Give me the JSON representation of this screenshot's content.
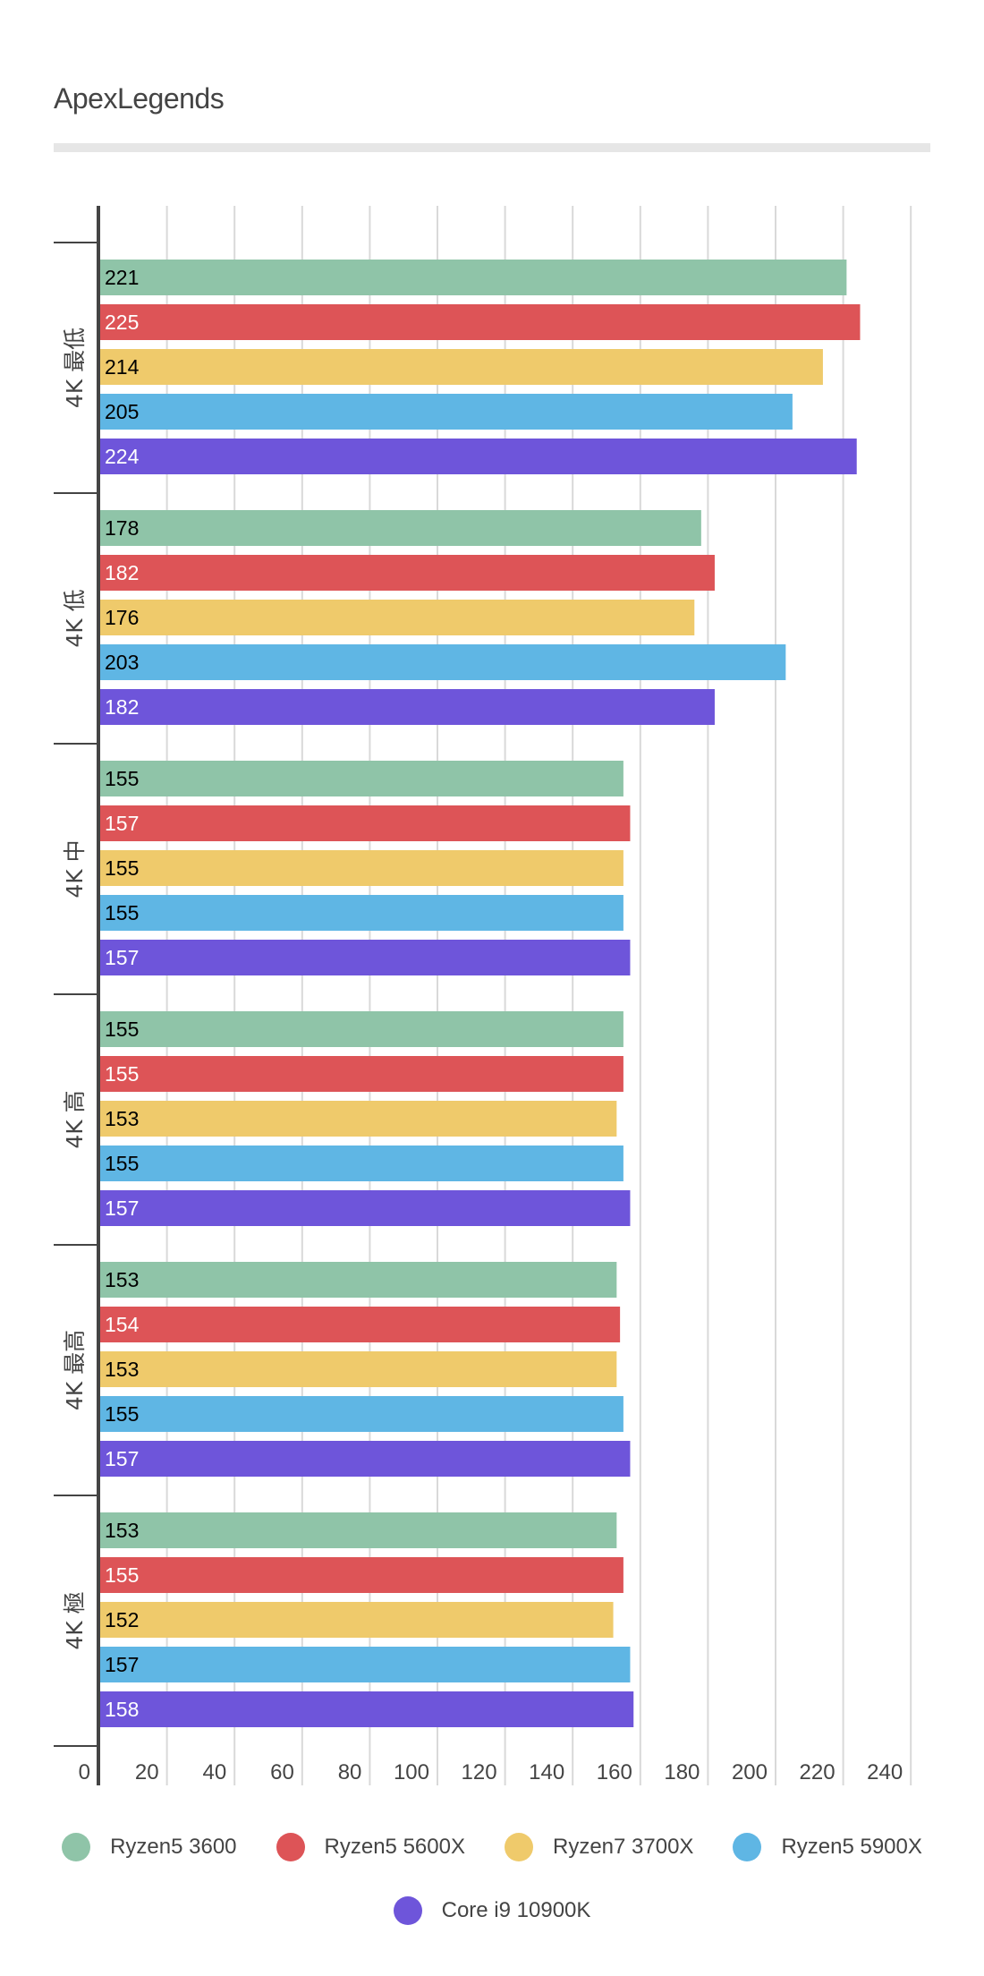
{
  "chart_data": {
    "type": "bar",
    "orientation": "horizontal",
    "title": "ApexLegends",
    "xlabel": "",
    "ylabel": "",
    "xlim": [
      0,
      260
    ],
    "x_ticks": [
      0,
      20,
      40,
      60,
      80,
      100,
      120,
      140,
      160,
      180,
      200,
      220,
      240
    ],
    "grid": true,
    "legend_position": "bottom",
    "categories": [
      "4K 最低",
      "4K 低",
      "4K 中",
      "4K 高",
      "4K 最高",
      "4K 極"
    ],
    "series": [
      {
        "name": "Ryzen5 3600",
        "color": "#8fc4a8",
        "label_color": "#000000",
        "values": [
          221,
          178,
          155,
          155,
          153,
          153
        ]
      },
      {
        "name": "Ryzen5 5600X",
        "color": "#dd5457",
        "label_color": "#ffffff",
        "values": [
          225,
          182,
          157,
          155,
          154,
          155
        ]
      },
      {
        "name": "Ryzen7 3700X",
        "color": "#efca6b",
        "label_color": "#000000",
        "values": [
          214,
          176,
          155,
          153,
          153,
          152
        ]
      },
      {
        "name": "Ryzen5 5900X",
        "color": "#5fb6e4",
        "label_color": "#000000",
        "values": [
          205,
          203,
          155,
          155,
          155,
          157
        ]
      },
      {
        "name": "Core i9 10900K",
        "color": "#6e55da",
        "label_color": "#ffffff",
        "values": [
          224,
          182,
          157,
          157,
          157,
          158
        ]
      }
    ]
  },
  "colors": {
    "axis": "#444444",
    "grid": "#d9d9d9",
    "text": "#444444",
    "divider": "#e6e6e6"
  }
}
